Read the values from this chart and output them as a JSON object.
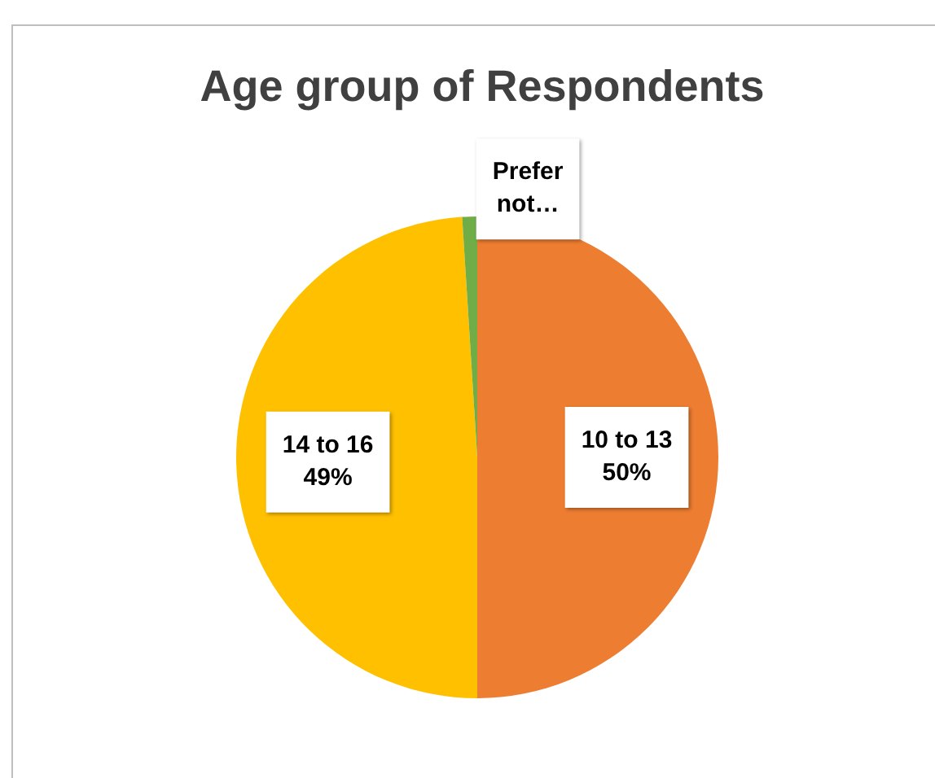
{
  "chart_data": {
    "type": "pie",
    "title": "Age group of Respondents",
    "categories": [
      "10 to 13",
      "14 to 16",
      "Prefer not…"
    ],
    "values": [
      50,
      49,
      1
    ],
    "colors": [
      "#ed7d31",
      "#ffc000",
      "#70ad47"
    ],
    "value_labels": [
      "50%",
      "49%",
      null
    ],
    "legend": false
  }
}
